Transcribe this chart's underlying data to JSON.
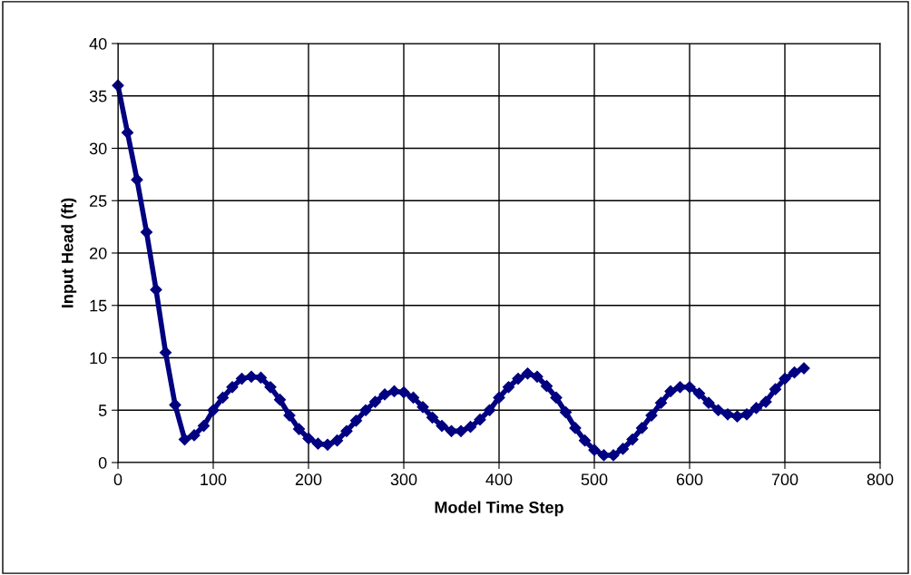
{
  "chart_data": {
    "type": "line",
    "xlabel": "Model Time Step",
    "ylabel": "Input Head (ft)",
    "xlim": [
      0,
      800
    ],
    "xticks": [
      0,
      100,
      200,
      300,
      400,
      500,
      600,
      700,
      800
    ],
    "ylim": [
      0,
      40
    ],
    "yticks": [
      0,
      5,
      10,
      15,
      20,
      25,
      30,
      35,
      40
    ],
    "grid": true,
    "marker": "diamond",
    "line_style": "solid",
    "series": [
      {
        "color": "#000080",
        "x": [
          0,
          10,
          20,
          30,
          40,
          50,
          60,
          70,
          80,
          90,
          100,
          110,
          120,
          130,
          140,
          150,
          160,
          170,
          180,
          190,
          200,
          210,
          220,
          230,
          240,
          250,
          260,
          270,
          280,
          290,
          300,
          310,
          320,
          330,
          340,
          350,
          360,
          370,
          380,
          390,
          400,
          410,
          420,
          430,
          440,
          450,
          460,
          470,
          480,
          490,
          500,
          510,
          520,
          530,
          540,
          550,
          560,
          570,
          580,
          590,
          600,
          610,
          620,
          630,
          640,
          650,
          660,
          670,
          680,
          690,
          700,
          710,
          720
        ],
        "values": [
          36,
          31.5,
          27,
          22,
          16.5,
          10.5,
          5.5,
          2.2,
          2.6,
          3.5,
          5,
          6.2,
          7.2,
          8,
          8.2,
          8.1,
          7.2,
          6,
          4.5,
          3.2,
          2.3,
          1.8,
          1.7,
          2.1,
          3,
          4,
          5,
          5.8,
          6.5,
          6.8,
          6.7,
          6.2,
          5.3,
          4.3,
          3.5,
          3,
          3,
          3.4,
          4.1,
          5,
          6.2,
          7.2,
          8,
          8.5,
          8.2,
          7.3,
          6.2,
          4.8,
          3.3,
          2.1,
          1.2,
          0.7,
          0.7,
          1.3,
          2.2,
          3.3,
          4.5,
          5.7,
          6.8,
          7.2,
          7.2,
          6.6,
          5.7,
          5,
          4.6,
          4.4,
          4.6,
          5.2,
          5.8,
          7,
          8,
          8.6,
          9
        ]
      }
    ]
  }
}
